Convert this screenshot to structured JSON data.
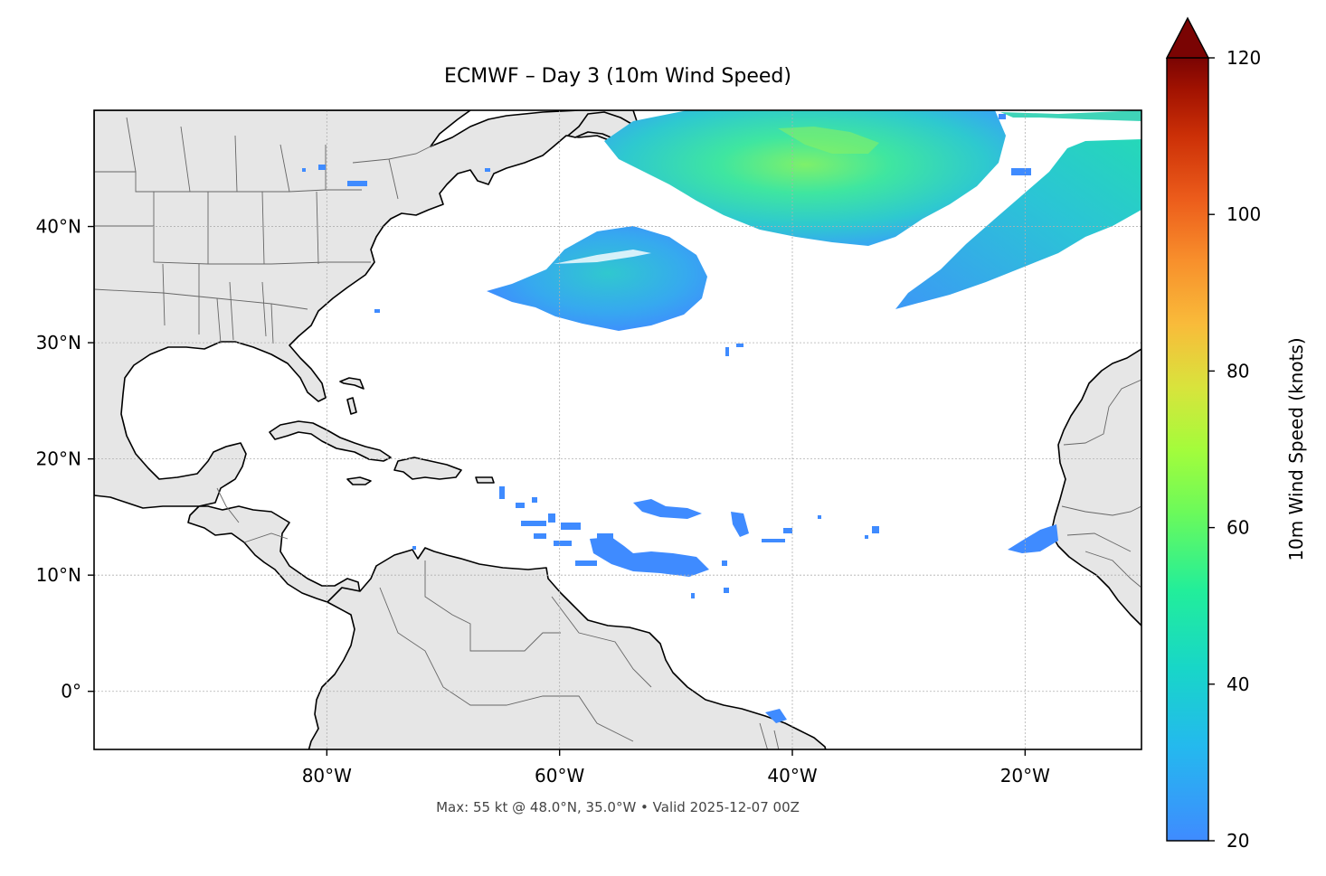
{
  "map": {
    "title": "ECMWF – Day 3 (10m Wind Speed)",
    "footer": "Max: 55 kt @ 48.0°N, 35.0°W • Valid 2025-12-07 00Z",
    "extent": {
      "lon_min": -100,
      "lon_max": -10,
      "lat_min": -5,
      "lat_max": 50
    },
    "lat_ticks": [
      {
        "value": 40,
        "label": "40°N"
      },
      {
        "value": 30,
        "label": "30°N"
      },
      {
        "value": 20,
        "label": "20°N"
      },
      {
        "value": 10,
        "label": "10°N"
      },
      {
        "value": 0,
        "label": "0°"
      }
    ],
    "lon_ticks": [
      {
        "value": -80,
        "label": "80°W"
      },
      {
        "value": -60,
        "label": "60°W"
      },
      {
        "value": -40,
        "label": "40°W"
      },
      {
        "value": -20,
        "label": "20°W"
      }
    ],
    "land_color": "#e6e6e6",
    "coast_color": "#000000",
    "border_color": "#666666",
    "max_point": {
      "lat": 48.0,
      "lon": -35.0,
      "value_kt": 55
    }
  },
  "colorbar": {
    "label": "10m Wind Speed (knots)",
    "min": 20,
    "max": 120,
    "ticks": [
      {
        "value": 20,
        "label": "20"
      },
      {
        "value": 40,
        "label": "40"
      },
      {
        "value": 60,
        "label": "60"
      },
      {
        "value": 80,
        "label": "80"
      },
      {
        "value": 100,
        "label": "100"
      },
      {
        "value": 120,
        "label": "120"
      }
    ],
    "extend": "max",
    "colormap": [
      "#3f8bff",
      "#2ab6f0",
      "#18d6c8",
      "#22ee9a",
      "#6cfa5a",
      "#a4fc3b",
      "#d9e33c",
      "#f9bb3a",
      "#f8902c",
      "#ec5c1b",
      "#cc3007",
      "#a11201",
      "#7a0403"
    ]
  },
  "wind_areas": [
    {
      "name": "north-atlantic-jet",
      "color": "#3fd4b8",
      "value_kt": 38
    },
    {
      "name": "jet-core",
      "color": "#7ef06a",
      "value_kt": 52
    },
    {
      "name": "northeast-band",
      "color": "#33c9c9",
      "value_kt": 34
    },
    {
      "name": "central-atlantic-low",
      "color": "#3aa8ee",
      "value_kt": 28
    },
    {
      "name": "trade-wind-patches",
      "color": "#3f8bff",
      "value_kt": 21
    }
  ]
}
